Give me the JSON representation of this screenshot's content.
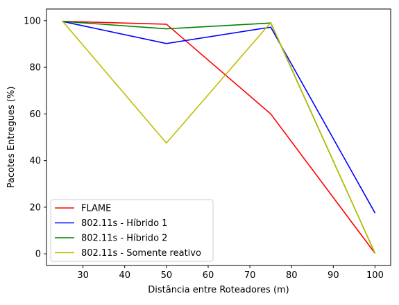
{
  "chart_data": {
    "type": "line",
    "xlabel": "Distância entre Roteadores (m)",
    "ylabel": "Pacotes Entregues (%)",
    "x": [
      25,
      50,
      75,
      100
    ],
    "xlim": [
      21.25,
      103.75
    ],
    "ylim": [
      -5,
      105
    ],
    "xticks": [
      30,
      40,
      50,
      60,
      70,
      80,
      90,
      100
    ],
    "yticks": [
      0,
      20,
      40,
      60,
      80,
      100
    ],
    "grid": false,
    "legend_position": "lower left",
    "series": [
      {
        "name": "FLAME",
        "color": "#ff0000",
        "values": [
          99.7,
          98.5,
          60,
          0.2
        ]
      },
      {
        "name": "802.11s - Híbrido 1",
        "color": "#0000ff",
        "values": [
          99.7,
          90.2,
          97.2,
          17.5
        ]
      },
      {
        "name": "802.11s - Híbrido 2",
        "color": "#008000",
        "values": [
          99.7,
          96.5,
          99.0,
          0.2
        ]
      },
      {
        "name": "802.11s - Somente reativo",
        "color": "#bfbf00",
        "values": [
          100,
          47.5,
          99.2,
          0.2
        ]
      }
    ]
  }
}
